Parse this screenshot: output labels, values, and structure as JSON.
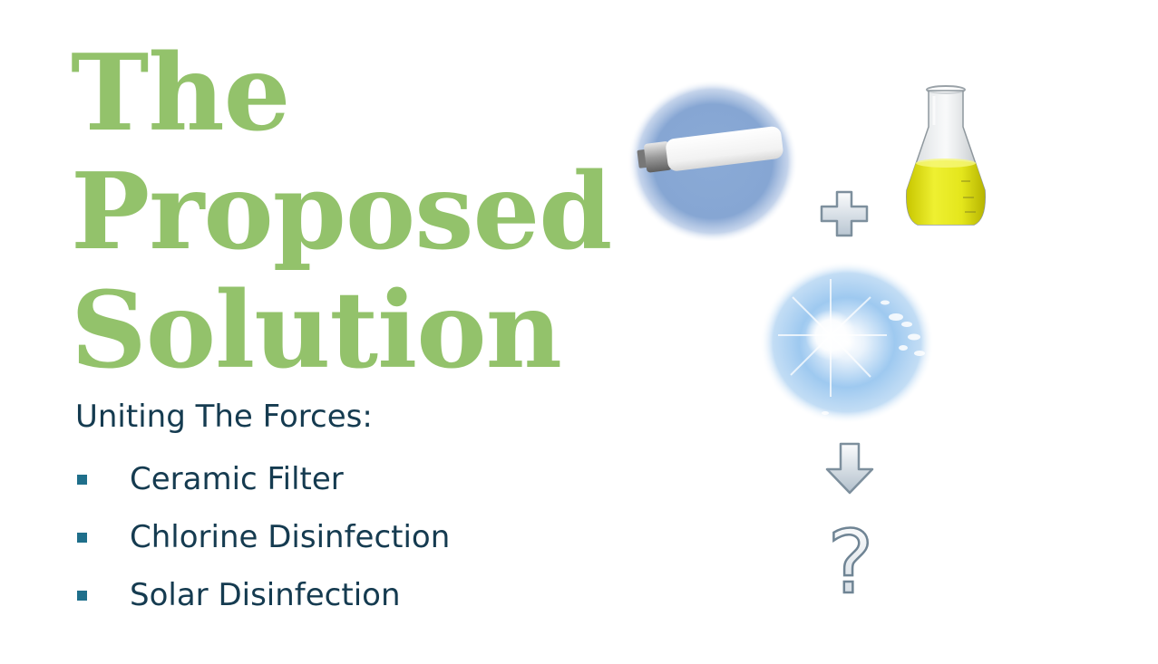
{
  "slide": {
    "title_lines": [
      "The",
      "Proposed",
      "Solution"
    ],
    "subtitle": "Uniting The Forces:",
    "bullets": [
      "Ceramic Filter",
      "Chlorine Disinfection",
      "Solar Disinfection"
    ],
    "question_mark": "?"
  },
  "colors": {
    "title": "#93c26b",
    "body_text": "#153b50",
    "bullet": "#1f6f8b"
  },
  "icons": {
    "filter": "ceramic-filter-icon",
    "plus": "plus-icon",
    "flask": "flask-icon",
    "sun": "sun-icon",
    "arrow": "arrow-down-icon",
    "question": "question-mark-icon"
  }
}
